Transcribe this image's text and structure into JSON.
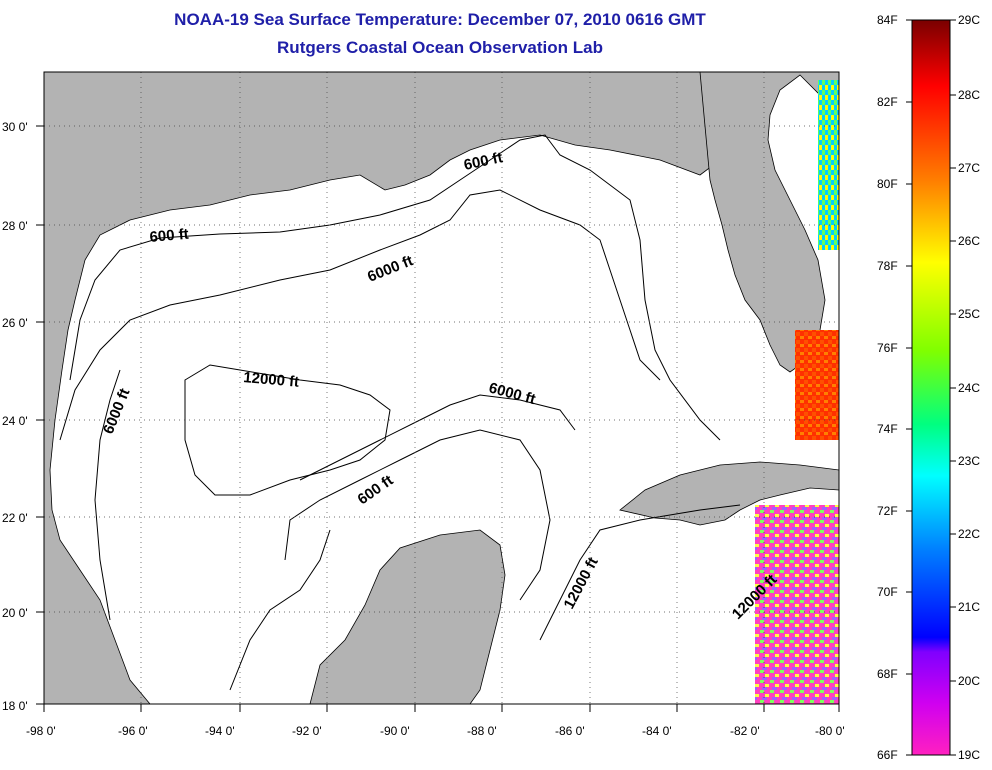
{
  "header": {
    "title": "NOAA-19 Sea Surface Temperature:  December 07, 2010 0616 GMT",
    "subtitle": "Rutgers Coastal Ocean Observation Lab"
  },
  "map": {
    "x_ticks": [
      "-98 0'",
      "-96 0'",
      "-94 0'",
      "-92 0'",
      "-90 0'",
      "-88 0'",
      "-86 0'",
      "-84 0'",
      "-82 0'",
      "-80 0'"
    ],
    "y_ticks": [
      "18 0'",
      "20 0'",
      "22 0'",
      "24 0'",
      "26 0'",
      "28 0'",
      "30 0'"
    ],
    "land_color": "#b3b3b3",
    "water_color": "#ffffff",
    "contour_labels": [
      "600 ft",
      "600 ft",
      "6000 ft",
      "12000 ft",
      "6000 ft",
      "6000 ft",
      "600 ft",
      "12000 ft",
      "12000 ft"
    ]
  },
  "colorbar": {
    "f_labels": [
      "84F",
      "82F",
      "80F",
      "78F",
      "76F",
      "74F",
      "72F",
      "70F",
      "68F",
      "66F"
    ],
    "c_labels": [
      "29C",
      "28C",
      "27C",
      "26C",
      "25C",
      "24C",
      "23C",
      "22C",
      "21C",
      "20C",
      "19C"
    ],
    "colors": [
      "#7a0000",
      "#ff0000",
      "#ff8000",
      "#ffff00",
      "#80ff00",
      "#00ff80",
      "#00ffff",
      "#0080ff",
      "#0000ff",
      "#8000ff",
      "#ff00ff",
      "#ff20c0"
    ]
  }
}
